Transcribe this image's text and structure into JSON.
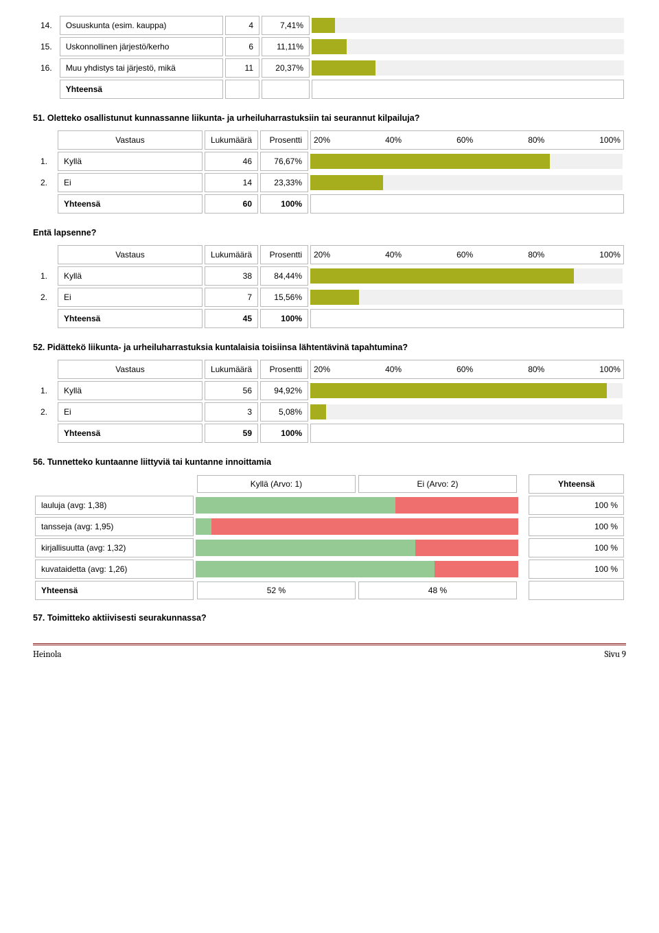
{
  "top_table": {
    "rows": [
      {
        "idx": "14.",
        "label": "Osuuskunta (esim. kauppa)",
        "count": "4",
        "pct": "7,41%",
        "bar_pct": 7.41
      },
      {
        "idx": "15.",
        "label": "Uskonnollinen järjestö/kerho",
        "count": "6",
        "pct": "11,11%",
        "bar_pct": 11.11
      },
      {
        "idx": "16.",
        "label": "Muu yhdistys tai järjestö, mikä",
        "count": "11",
        "pct": "20,37%",
        "bar_pct": 20.37
      }
    ],
    "total_label": "Yhteensä"
  },
  "colors": {
    "bar_fg": "#a7ae1e",
    "bar_bg": "#f0f0f0",
    "seg_yes": "#95ca95",
    "seg_no": "#ef6f6f",
    "border": "#b8b8b8"
  },
  "q51": {
    "title": "51. Oletteko osallistunut kunnassanne liikunta- ja urheiluharrastuksiin tai seurannut kilpailuja?",
    "header": {
      "c1": "Vastaus",
      "c2": "Lukumäärä",
      "c3": "Prosentti"
    },
    "ticks": [
      "20%",
      "40%",
      "60%",
      "80%",
      "100%"
    ],
    "rows": [
      {
        "idx": "1.",
        "label": "Kyllä",
        "count": "46",
        "pct": "76,67%",
        "bar_pct": 76.67
      },
      {
        "idx": "2.",
        "label": "Ei",
        "count": "14",
        "pct": "23,33%",
        "bar_pct": 23.33
      }
    ],
    "total_label": "Yhteensä",
    "total_count": "60",
    "total_pct": "100%"
  },
  "q_lapsenne": {
    "title": "Entä lapsenne?",
    "header": {
      "c1": "Vastaus",
      "c2": "Lukumäärä",
      "c3": "Prosentti"
    },
    "ticks": [
      "20%",
      "40%",
      "60%",
      "80%",
      "100%"
    ],
    "rows": [
      {
        "idx": "1.",
        "label": "Kyllä",
        "count": "38",
        "pct": "84,44%",
        "bar_pct": 84.44
      },
      {
        "idx": "2.",
        "label": "Ei",
        "count": "7",
        "pct": "15,56%",
        "bar_pct": 15.56
      }
    ],
    "total_label": "Yhteensä",
    "total_count": "45",
    "total_pct": "100%"
  },
  "q52": {
    "title": "52. Pidättekö liikunta- ja urheiluharrastuksia kuntalaisia toisiinsa lähtentävinä tapahtumina?",
    "header": {
      "c1": "Vastaus",
      "c2": "Lukumäärä",
      "c3": "Prosentti"
    },
    "ticks": [
      "20%",
      "40%",
      "60%",
      "80%",
      "100%"
    ],
    "rows": [
      {
        "idx": "1.",
        "label": "Kyllä",
        "count": "56",
        "pct": "94,92%",
        "bar_pct": 94.92
      },
      {
        "idx": "2.",
        "label": "Ei",
        "count": "3",
        "pct": "5,08%",
        "bar_pct": 5.08
      }
    ],
    "total_label": "Yhteensä",
    "total_count": "59",
    "total_pct": "100%"
  },
  "q56": {
    "title": "56. Tunnetteko kuntaanne liittyviä tai kuntanne innoittamia",
    "top_right": "Yhteensä",
    "h1": "Kyllä (Arvo: 1)",
    "h2": "Ei (Arvo: 2)",
    "rows": [
      {
        "label": "lauluja (avg: 1,38)",
        "yes_pct": 62,
        "no_pct": 38,
        "tot": "100 %"
      },
      {
        "label": "tansseja (avg: 1,95)",
        "yes_pct": 5,
        "no_pct": 95,
        "tot": "100 %"
      },
      {
        "label": "kirjallisuutta (avg: 1,32)",
        "yes_pct": 68,
        "no_pct": 32,
        "tot": "100 %"
      },
      {
        "label": "kuvataidetta (avg: 1,26)",
        "yes_pct": 74,
        "no_pct": 26,
        "tot": "100 %"
      }
    ],
    "tot_label": "Yhteensä",
    "tot_yes": "52 %",
    "tot_no": "48 %"
  },
  "q57": {
    "title": "57. Toimitteko aktiivisesti seurakunnassa?"
  },
  "footer": {
    "left": "Heinola",
    "right": "Sivu 9"
  }
}
